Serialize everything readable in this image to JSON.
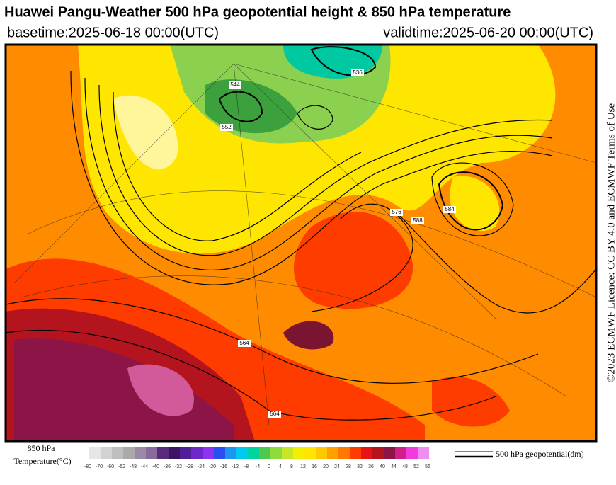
{
  "header": {
    "title": "Huawei Pangu-Weather 500 hPa geopotential height & 850 hPa temperature",
    "basetime": "basetime:2025-06-18 00:00(UTC)",
    "validtime": "validtime:2025-06-20 00:00(UTC)"
  },
  "side_note": "©2023 ECMWF Licence: CC BY 4.0 and ECMWF Terms of Use",
  "legend": {
    "colorbar_title": [
      "850 hPa",
      "Temperature(°C)"
    ],
    "ticks": [
      "-80",
      "-70",
      "-60",
      "-52",
      "-48",
      "-44",
      "-40",
      "-36",
      "-32",
      "-28",
      "-24",
      "-20",
      "-16",
      "-12",
      "-8",
      "-4",
      "0",
      "4",
      "8",
      "12",
      "16",
      "20",
      "24",
      "28",
      "32",
      "36",
      "40",
      "44",
      "48",
      "52",
      "56"
    ],
    "colors": [
      "#e6e6e6",
      "#d2d2d2",
      "#bebebe",
      "#aaaaaa",
      "#9a8aa8",
      "#8a6a9a",
      "#5a2a7a",
      "#3c1464",
      "#501e96",
      "#6e28c8",
      "#8c32f0",
      "#2850f0",
      "#1e96f0",
      "#00c8f0",
      "#00d2a0",
      "#50c850",
      "#8cdc3c",
      "#c8e628",
      "#f0f000",
      "#ffe600",
      "#ffc800",
      "#ffa000",
      "#ff7800",
      "#ff3c00",
      "#e61414",
      "#b4141e",
      "#8c1446",
      "#d21e8c",
      "#f03cdc",
      "#f08cf0"
    ],
    "line_label": "500 hPa geopotential(dm)"
  },
  "map": {
    "contour_labels": [
      "536",
      "544",
      "552",
      "564",
      "576",
      "584",
      "588",
      "564"
    ]
  }
}
